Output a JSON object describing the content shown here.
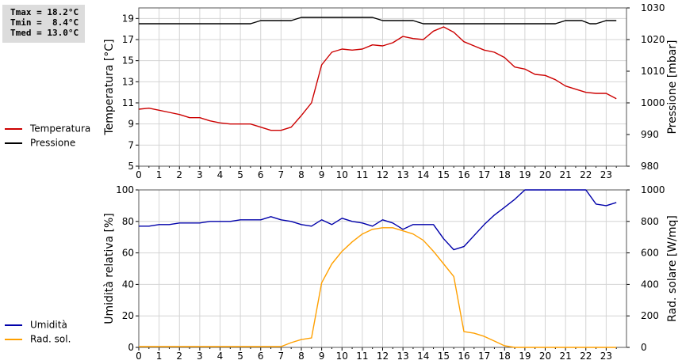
{
  "stats": {
    "tmax": "Tmax = 18.2°C",
    "tmin": "Tmin =  8.4°C",
    "tmed": "Tmed = 13.0°C"
  },
  "colors": {
    "temperature": "#cc0000",
    "pressure": "#000000",
    "humidity": "#0000aa",
    "radiation": "#ffa000",
    "grid": "#d4d4d4",
    "frame": "#555555"
  },
  "chart_data": [
    {
      "type": "line",
      "ylabel": "Temperatura [°C]",
      "y2label": "Pressione [mbar]",
      "xlim": [
        0,
        24
      ],
      "ylim": [
        5,
        20
      ],
      "y2lim": [
        980,
        1030
      ],
      "xticks": [
        "0",
        "1",
        "2",
        "3",
        "4",
        "5",
        "6",
        "7",
        "8",
        "9",
        "10",
        "11",
        "12",
        "13",
        "14",
        "15",
        "16",
        "17",
        "18",
        "19",
        "20",
        "21",
        "22",
        "23"
      ],
      "yticks": [
        "5",
        "7",
        "9",
        "11",
        "13",
        "15",
        "17",
        "19"
      ],
      "y2ticks": [
        "980",
        "990",
        "1000",
        "1010",
        "1020",
        "1030"
      ],
      "grid": true,
      "series": [
        {
          "name": "Temperatura",
          "axis": "left",
          "color": "#cc0000",
          "x": [
            0,
            0.5,
            1,
            1.5,
            2,
            2.5,
            3,
            3.5,
            4,
            4.5,
            5,
            5.5,
            6,
            6.5,
            7,
            7.5,
            8,
            8.5,
            9,
            9.5,
            10,
            10.5,
            11,
            11.5,
            12,
            12.5,
            13,
            13.5,
            14,
            14.5,
            15,
            15.5,
            16,
            16.5,
            17,
            17.5,
            18,
            18.5,
            19,
            19.5,
            20,
            20.5,
            21,
            21.5,
            22,
            22.5,
            23,
            23.5
          ],
          "values": [
            10.4,
            10.5,
            10.3,
            10.1,
            9.9,
            9.6,
            9.6,
            9.3,
            9.1,
            9.0,
            9.0,
            9.0,
            8.7,
            8.4,
            8.4,
            8.7,
            9.8,
            11.0,
            14.6,
            15.8,
            16.1,
            16.0,
            16.1,
            16.5,
            16.4,
            16.7,
            17.3,
            17.1,
            17.0,
            17.8,
            18.2,
            17.7,
            16.8,
            16.4,
            16.0,
            15.8,
            15.3,
            14.4,
            14.2,
            13.7,
            13.6,
            13.2,
            12.6,
            12.3,
            12.0,
            11.9,
            11.9,
            11.4
          ]
        },
        {
          "name": "Pressione",
          "axis": "right",
          "color": "#000000",
          "x": [
            0,
            5,
            5.5,
            6,
            7.5,
            8,
            11.5,
            12,
            13.5,
            14,
            20.5,
            21,
            21.8,
            22.2,
            22.5,
            23,
            23.5
          ],
          "values": [
            1025,
            1025,
            1025,
            1026,
            1026,
            1027,
            1027,
            1026,
            1026,
            1025,
            1025,
            1026,
            1026,
            1025,
            1025,
            1026,
            1026
          ]
        }
      ]
    },
    {
      "type": "line",
      "ylabel": "Umidità relativa [%]",
      "y2label": "Rad. solare [W/mq]",
      "xlim": [
        0,
        24
      ],
      "ylim": [
        0,
        100
      ],
      "y2lim": [
        0,
        1000
      ],
      "xticks": [
        "0",
        "1",
        "2",
        "3",
        "4",
        "5",
        "6",
        "7",
        "8",
        "9",
        "10",
        "11",
        "12",
        "13",
        "14",
        "15",
        "16",
        "17",
        "18",
        "19",
        "20",
        "21",
        "22",
        "23"
      ],
      "yticks": [
        "0",
        "20",
        "40",
        "60",
        "80",
        "100"
      ],
      "y2ticks": [
        "0",
        "200",
        "400",
        "600",
        "800",
        "1000"
      ],
      "grid": true,
      "series": [
        {
          "name": "Umidità",
          "axis": "left",
          "color": "#0000aa",
          "x": [
            0,
            0.5,
            1,
            1.5,
            2,
            2.5,
            3,
            3.5,
            4,
            4.5,
            5,
            5.5,
            6,
            6.5,
            7,
            7.5,
            8,
            8.5,
            9,
            9.5,
            10,
            10.5,
            11,
            11.5,
            12,
            12.5,
            13,
            13.5,
            14,
            14.5,
            15,
            15.5,
            16,
            16.5,
            17,
            17.5,
            18,
            18.5,
            19,
            19.5,
            20,
            20.5,
            21,
            21.5,
            22,
            22.5,
            23,
            23.5
          ],
          "values": [
            77,
            77,
            78,
            78,
            79,
            79,
            79,
            80,
            80,
            80,
            81,
            81,
            81,
            83,
            81,
            80,
            78,
            77,
            81,
            78,
            82,
            80,
            79,
            77,
            81,
            79,
            75,
            78,
            78,
            78,
            69,
            62,
            64,
            71,
            78,
            84,
            89,
            94,
            100,
            100,
            100,
            100,
            100,
            100,
            100,
            91,
            90,
            92
          ]
        },
        {
          "name": "Rad. sol.",
          "axis": "right",
          "color": "#ffa000",
          "x": [
            0,
            0.5,
            1,
            1.5,
            2,
            2.5,
            3,
            3.5,
            4,
            4.5,
            5,
            5.5,
            6,
            6.5,
            7,
            7.5,
            8,
            8.5,
            9,
            9.5,
            10,
            10.5,
            11,
            11.5,
            12,
            12.5,
            13,
            13.5,
            14,
            14.5,
            15,
            15.5,
            16,
            16.5,
            17,
            17.5,
            18,
            18.5,
            19,
            19.5,
            20,
            20.5,
            21,
            21.5,
            22,
            22.5,
            23,
            23.5
          ],
          "values": [
            5,
            5,
            5,
            5,
            5,
            5,
            5,
            5,
            5,
            5,
            5,
            5,
            5,
            5,
            5,
            30,
            50,
            60,
            410,
            530,
            610,
            670,
            720,
            750,
            760,
            760,
            740,
            720,
            680,
            610,
            530,
            450,
            100,
            90,
            70,
            40,
            10,
            0,
            0,
            0,
            0,
            0,
            0,
            0,
            0,
            0,
            0,
            0
          ]
        }
      ]
    }
  ]
}
